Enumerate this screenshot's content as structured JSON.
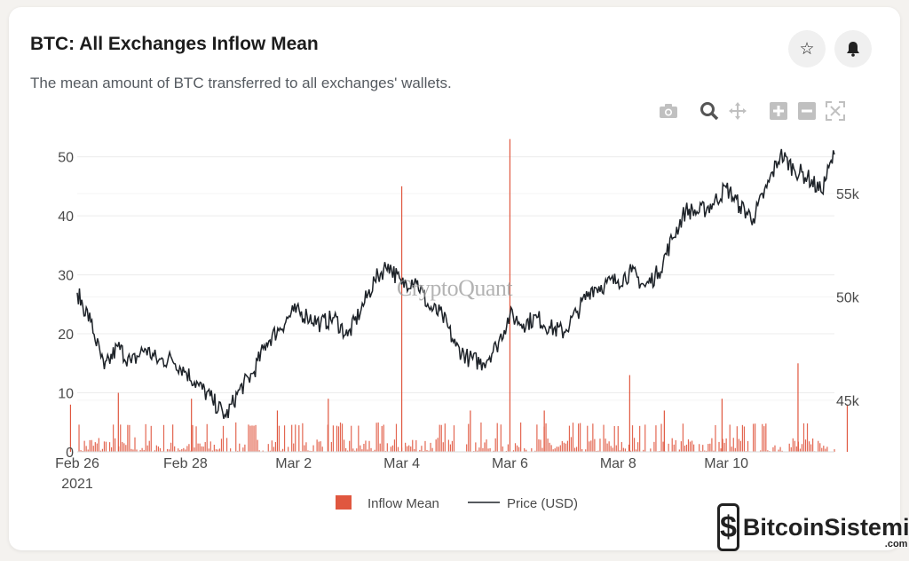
{
  "header": {
    "title": "BTC: All Exchanges Inflow Mean",
    "subtitle": "The mean amount of BTC transferred to all exchanges' wallets."
  },
  "actions": {
    "favorite_icon": "star-icon",
    "alert_icon": "bell-icon"
  },
  "toolbar": {
    "icons": [
      "camera-icon",
      "zoom-icon",
      "pan-icon",
      "zoom-in-icon",
      "zoom-out-icon",
      "autoscale-icon"
    ]
  },
  "watermark": {
    "text": "CryptoQuant"
  },
  "site_watermark": {
    "text": "BitcoinSistemi",
    "sub": ".com"
  },
  "colors": {
    "inflow": "#e0573f",
    "price": "#1e2329",
    "grid": "#ececec",
    "axis_text": "#4a4a4a"
  },
  "chart_data": {
    "type": "bar",
    "x_ticks": [
      "Feb 26",
      "Feb 28",
      "Mar 2",
      "Mar 4",
      "Mar 6",
      "Mar 8",
      "Mar 10"
    ],
    "x_tick_year": "2021",
    "xlim": [
      "2021-02-26",
      "2021-03-12"
    ],
    "y_left": {
      "ticks": [
        0,
        10,
        20,
        30,
        40,
        50
      ],
      "range": [
        0,
        52.5
      ]
    },
    "y_right": {
      "ticks": [
        "45k",
        "50k",
        "55k"
      ],
      "tick_values": [
        45000,
        50000,
        55000
      ],
      "range": [
        42500,
        57500
      ]
    },
    "legend_position": "bottom-center",
    "series": [
      {
        "name": "Inflow Mean",
        "type": "bar",
        "axis": "left",
        "typical_range": [
          0,
          5
        ],
        "spikes": [
          {
            "date": "2021-02-26",
            "value": 8
          },
          {
            "date": "2021-02-27",
            "value": 10
          },
          {
            "date": "2021-02-28",
            "value": 9
          },
          {
            "date": "2021-03-02",
            "value": 7
          },
          {
            "date": "2021-03-03",
            "value": 9
          },
          {
            "date": "2021-03-04",
            "value": 45
          },
          {
            "date": "2021-03-05",
            "value": 7
          },
          {
            "date": "2021-03-06",
            "value": 53
          },
          {
            "date": "2021-03-07",
            "value": 7
          },
          {
            "date": "2021-03-08",
            "value": 13
          },
          {
            "date": "2021-03-09",
            "value": 7
          },
          {
            "date": "2021-03-10",
            "value": 9
          },
          {
            "date": "2021-03-11",
            "value": 15
          },
          {
            "date": "2021-03-12",
            "value": 8
          }
        ]
      },
      {
        "name": "Price (USD)",
        "type": "line",
        "axis": "right",
        "points": [
          [
            "2021-02-26T00:00",
            50200
          ],
          [
            "2021-02-26T06:00",
            48800
          ],
          [
            "2021-02-26T12:00",
            46500
          ],
          [
            "2021-02-26T18:00",
            47600
          ],
          [
            "2021-02-27T00:00",
            46800
          ],
          [
            "2021-02-27T06:00",
            47500
          ],
          [
            "2021-02-27T12:00",
            46900
          ],
          [
            "2021-02-27T18:00",
            47000
          ],
          [
            "2021-02-28T00:00",
            46400
          ],
          [
            "2021-02-28T06:00",
            45700
          ],
          [
            "2021-02-28T12:00",
            45000
          ],
          [
            "2021-02-28T18:00",
            44200
          ],
          [
            "2021-03-01T00:00",
            45500
          ],
          [
            "2021-03-01T06:00",
            46300
          ],
          [
            "2021-03-01T12:00",
            47800
          ],
          [
            "2021-03-01T18:00",
            48500
          ],
          [
            "2021-03-02T00:00",
            49300
          ],
          [
            "2021-03-02T06:00",
            49100
          ],
          [
            "2021-03-02T12:00",
            48700
          ],
          [
            "2021-03-02T18:00",
            49000
          ],
          [
            "2021-03-03T00:00",
            48100
          ],
          [
            "2021-03-03T06:00",
            49400
          ],
          [
            "2021-03-03T12:00",
            50800
          ],
          [
            "2021-03-03T18:00",
            51600
          ],
          [
            "2021-03-04T00:00",
            50600
          ],
          [
            "2021-03-04T06:00",
            50900
          ],
          [
            "2021-03-04T12:00",
            49500
          ],
          [
            "2021-03-04T18:00",
            49100
          ],
          [
            "2021-03-05T00:00",
            47600
          ],
          [
            "2021-03-05T06:00",
            47000
          ],
          [
            "2021-03-05T12:00",
            46800
          ],
          [
            "2021-03-05T18:00",
            47600
          ],
          [
            "2021-03-06T00:00",
            49100
          ],
          [
            "2021-03-06T06:00",
            48700
          ],
          [
            "2021-03-06T12:00",
            49000
          ],
          [
            "2021-03-06T18:00",
            48500
          ],
          [
            "2021-03-07T00:00",
            48300
          ],
          [
            "2021-03-07T06:00",
            49300
          ],
          [
            "2021-03-07T12:00",
            50400
          ],
          [
            "2021-03-07T18:00",
            50600
          ],
          [
            "2021-03-08T00:00",
            50800
          ],
          [
            "2021-03-08T06:00",
            51200
          ],
          [
            "2021-03-08T12:00",
            50500
          ],
          [
            "2021-03-08T18:00",
            51200
          ],
          [
            "2021-03-09T00:00",
            52800
          ],
          [
            "2021-03-09T06:00",
            54200
          ],
          [
            "2021-03-09T12:00",
            54100
          ],
          [
            "2021-03-09T18:00",
            54500
          ],
          [
            "2021-03-10T00:00",
            55300
          ],
          [
            "2021-03-10T06:00",
            54400
          ],
          [
            "2021-03-10T12:00",
            53800
          ],
          [
            "2021-03-10T18:00",
            55300
          ],
          [
            "2021-03-11T00:00",
            56900
          ],
          [
            "2021-03-11T06:00",
            56200
          ],
          [
            "2021-03-11T12:00",
            55800
          ],
          [
            "2021-03-11T18:00",
            55100
          ],
          [
            "2021-03-12T00:00",
            56900
          ]
        ]
      }
    ]
  }
}
